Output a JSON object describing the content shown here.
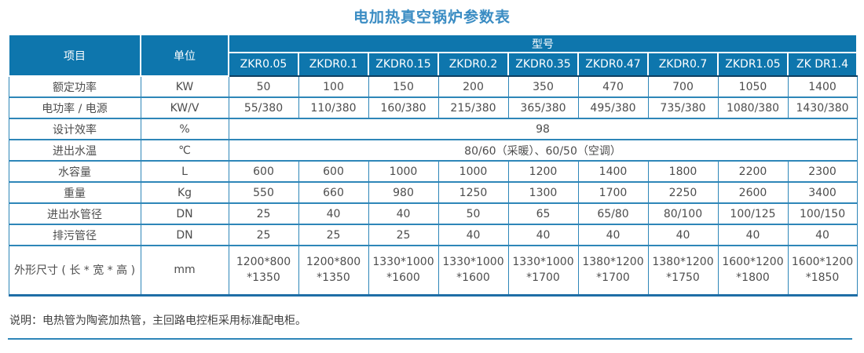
{
  "title": "电加热真空锅炉参数表",
  "colors": {
    "header_bg": "#0e76ad",
    "border_blue": "#2e86b8",
    "header_bottom_edge": "#0e3f61",
    "title_blue": "#3a8cc3",
    "data_text": "#4d4d4d"
  },
  "table": {
    "header": {
      "item": "项目",
      "unit": "单位",
      "model_group": "型号"
    },
    "models": [
      "ZKR0.05",
      "ZKDR0.1",
      "ZKDR0.15",
      "ZKDR0.2",
      "ZKDR0.35",
      "ZKDR0.47",
      "ZKDR0.7",
      "ZKDR1.05",
      "ZK DR1.4"
    ],
    "rows": [
      {
        "item": "额定功率",
        "unit": "KW",
        "values": [
          "50",
          "100",
          "150",
          "200",
          "350",
          "470",
          "700",
          "1050",
          "1400"
        ]
      },
      {
        "item": "电功率 / 电源",
        "unit": "KW/V",
        "values": [
          "55/380",
          "110/380",
          "160/380",
          "215/380",
          "365/380",
          "495/380",
          "735/380",
          "1080/380",
          "1430/380"
        ]
      },
      {
        "item": "设计效率",
        "unit": "%",
        "merged": "98"
      },
      {
        "item": "进出水温",
        "unit": "℃",
        "merged": "80/60（采暖）、60/50（空调）"
      },
      {
        "item": "水容量",
        "unit": "L",
        "values": [
          "600",
          "600",
          "1000",
          "1000",
          "1200",
          "1400",
          "1800",
          "2200",
          "2300"
        ]
      },
      {
        "item": "重量",
        "unit": "Kg",
        "values": [
          "550",
          "660",
          "980",
          "1250",
          "1300",
          "1700",
          "2250",
          "2600",
          "3400"
        ]
      },
      {
        "item": "进出水管径",
        "unit": "DN",
        "values": [
          "25",
          "40",
          "40",
          "50",
          "65",
          "65/80",
          "80/100",
          "100/125",
          "100/150"
        ]
      },
      {
        "item": "排污管径",
        "unit": "DN",
        "values": [
          "25",
          "25",
          "25",
          "40",
          "40",
          "40",
          "40",
          "40",
          "40"
        ]
      },
      {
        "item": "外形尺寸 ( 长 * 宽 * 高 )",
        "unit": "mm",
        "two_line": true,
        "values": [
          "1200*800\n*1350",
          "1200*800\n*1350",
          "1330*1000\n*1600",
          "1330*1000\n*1600",
          "1330*1000\n*1700",
          "1380*1200\n*1700",
          "1380*1200\n*1750",
          "1600*1200\n*1800",
          "1600*1200\n*1850"
        ]
      }
    ],
    "note": "说明：电热管为陶瓷加热管，主回路电控柜采用标准配电柜。"
  }
}
